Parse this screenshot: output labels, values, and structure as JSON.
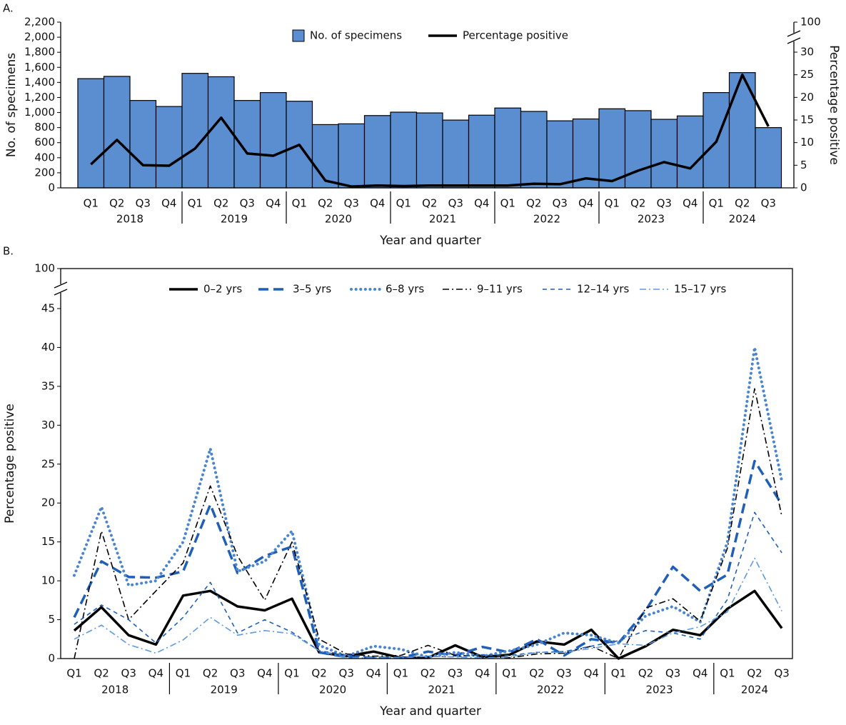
{
  "chart_data": [
    {
      "type": "combo",
      "label": "A.",
      "xlabel": "Year and quarter",
      "ylabel": "No. of specimens",
      "y2label": "Percentage positive",
      "groups": [
        {
          "label": "2018",
          "categories": [
            "Q1",
            "Q2",
            "Q3",
            "Q4"
          ]
        },
        {
          "label": "2019",
          "categories": [
            "Q1",
            "Q2",
            "Q3",
            "Q4"
          ]
        },
        {
          "label": "2020",
          "categories": [
            "Q1",
            "Q2",
            "Q3",
            "Q4"
          ]
        },
        {
          "label": "2021",
          "categories": [
            "Q1",
            "Q2",
            "Q3",
            "Q4"
          ]
        },
        {
          "label": "2022",
          "categories": [
            "Q1",
            "Q2",
            "Q3",
            "Q4"
          ]
        },
        {
          "label": "2023",
          "categories": [
            "Q1",
            "Q2",
            "Q3",
            "Q4"
          ]
        },
        {
          "label": "2024",
          "categories": [
            "Q1",
            "Q2",
            "Q3"
          ]
        }
      ],
      "series": [
        {
          "name": "No. of specimens",
          "type": "bar",
          "axis": "y",
          "color": "#5b8ed1",
          "values": [
            1450,
            1480,
            1160,
            1080,
            1520,
            1475,
            1160,
            1265,
            1150,
            840,
            850,
            960,
            1005,
            995,
            900,
            965,
            1060,
            1015,
            890,
            915,
            1050,
            1025,
            910,
            955,
            1265,
            1530,
            800
          ]
        },
        {
          "name": "Percentage positive",
          "type": "line",
          "axis": "y2",
          "color": "#000000",
          "values": [
            5.2,
            10.6,
            5.0,
            4.9,
            8.7,
            15.5,
            7.6,
            7.1,
            9.5,
            1.6,
            0.3,
            0.5,
            0.4,
            0.5,
            0.5,
            0.5,
            0.5,
            0.9,
            0.8,
            2.1,
            1.5,
            3.8,
            5.7,
            4.3,
            10.2,
            25,
            13.6
          ]
        }
      ],
      "ylim": [
        0,
        2200
      ],
      "yticks": [
        0,
        200,
        400,
        600,
        800,
        {
          "value": 1000,
          "label": "1,000"
        },
        {
          "value": 1200,
          "label": "1,200"
        },
        {
          "value": 1400,
          "label": "1,400"
        },
        {
          "value": 1600,
          "label": "1,600"
        },
        {
          "value": 1800,
          "label": "1,800"
        },
        {
          "value": 2000,
          "label": "2,000"
        },
        {
          "value": 2200,
          "label": "2,200"
        }
      ],
      "y2lim": [
        0,
        100
      ],
      "y2break": 30,
      "y2ticks": [
        0,
        5,
        10,
        15,
        20,
        25,
        30,
        100
      ],
      "legend": "top"
    },
    {
      "type": "line",
      "label": "B.",
      "xlabel": "Year and quarter",
      "ylabel": "Percentage positive",
      "groups": [
        {
          "label": "2018",
          "categories": [
            "Q1",
            "Q2",
            "Q3",
            "Q4"
          ]
        },
        {
          "label": "2019",
          "categories": [
            "Q1",
            "Q2",
            "Q3",
            "Q4"
          ]
        },
        {
          "label": "2020",
          "categories": [
            "Q1",
            "Q2",
            "Q3",
            "Q4"
          ]
        },
        {
          "label": "2021",
          "categories": [
            "Q1",
            "Q2",
            "Q3",
            "Q4"
          ]
        },
        {
          "label": "2022",
          "categories": [
            "Q1",
            "Q2",
            "Q3",
            "Q4"
          ]
        },
        {
          "label": "2023",
          "categories": [
            "Q1",
            "Q2",
            "Q3",
            "Q4"
          ]
        },
        {
          "label": "2024",
          "categories": [
            "Q1",
            "Q2",
            "Q3"
          ]
        }
      ],
      "series": [
        {
          "name": "0–2 yrs",
          "color": "#000000",
          "style": "solid",
          "weight": "thick",
          "values": [
            3.6,
            6.6,
            3.0,
            1.8,
            8.1,
            8.7,
            6.7,
            6.2,
            7.7,
            0.8,
            0.3,
            0.9,
            0.1,
            0.1,
            1.7,
            0.2,
            0.5,
            2.2,
            1.8,
            3.7,
            0.0,
            1.6,
            3.7,
            3.0,
            6.4,
            8.7,
            3.9
          ]
        },
        {
          "name": "3–5 yrs",
          "color": "#1f5fb8",
          "style": "dashed",
          "weight": "thick",
          "values": [
            5.3,
            12.5,
            10.5,
            10.4,
            11.2,
            19.8,
            11.0,
            13.2,
            14.4,
            0.8,
            0.2,
            0.1,
            0.1,
            0.9,
            0.4,
            1.5,
            0.8,
            2.5,
            0.4,
            2.5,
            2.0,
            6.2,
            11.8,
            8.7,
            10.8,
            25.4,
            19.8
          ]
        },
        {
          "name": "6–8 yrs",
          "color": "#4a86d0",
          "style": "dotted",
          "weight": "thick",
          "values": [
            10.7,
            19.5,
            9.4,
            10.0,
            15.0,
            27.0,
            11.2,
            12.5,
            16.4,
            1.7,
            0.3,
            1.6,
            1.2,
            0.2,
            0.8,
            0.3,
            1.0,
            1.8,
            3.3,
            3.0,
            2.0,
            5.5,
            6.7,
            4.7,
            15.0,
            40.0,
            22.8
          ]
        },
        {
          "name": "9–11 yrs",
          "color": "#000000",
          "style": "dashdot",
          "weight": "thin",
          "values": [
            0.0,
            16.4,
            5.0,
            8.7,
            12.3,
            22.2,
            13.2,
            7.5,
            15.0,
            2.5,
            0.6,
            0.3,
            0.4,
            1.7,
            0.4,
            0.3,
            0.1,
            0.6,
            0.7,
            1.6,
            0.0,
            6.5,
            7.7,
            4.8,
            14.2,
            34.7,
            18.3
          ]
        },
        {
          "name": "12–14 yrs",
          "color": "#1f5fb8",
          "style": "dashed",
          "weight": "thin",
          "values": [
            4.4,
            6.9,
            5.0,
            2.0,
            5.3,
            9.8,
            3.3,
            5.0,
            3.4,
            1.0,
            0.5,
            0.1,
            0.1,
            0.3,
            0.2,
            0.5,
            0.4,
            0.8,
            0.9,
            1.6,
            2.3,
            3.6,
            3.3,
            2.5,
            7.6,
            18.8,
            13.6
          ]
        },
        {
          "name": "15–17 yrs",
          "color": "#5f9ade",
          "style": "dashdot",
          "weight": "thin",
          "values": [
            2.5,
            4.3,
            1.8,
            0.7,
            2.4,
            5.3,
            3.0,
            3.6,
            3.2,
            1.0,
            0.1,
            0.1,
            0.1,
            0.3,
            0.2,
            0.1,
            0.2,
            0.8,
            0.8,
            1.3,
            1.9,
            1.7,
            3.3,
            4.1,
            6.0,
            12.9,
            6.1
          ]
        }
      ],
      "ylim": [
        0,
        100
      ],
      "ybreak": 45,
      "yticks": [
        0,
        5,
        10,
        15,
        20,
        25,
        30,
        35,
        40,
        45,
        100
      ],
      "legend": "top"
    }
  ]
}
